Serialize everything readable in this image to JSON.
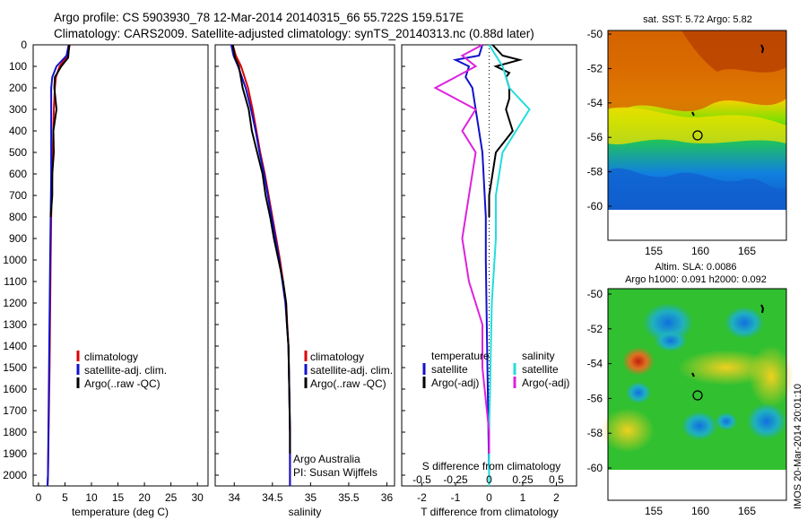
{
  "header": {
    "line1": "Argo profile: CS 5903930_78 12-Mar-2014 20140315_66 55.722S 159.517E",
    "line2": "Climatology: CARS2009. Satellite-adjusted climatology: synTS_20140313.nc (0.88d later)"
  },
  "colors": {
    "climatology": "#dd0000",
    "satellite": "#1111cc",
    "argo": "#000000",
    "satellite_salinity": "#22dddd",
    "argo_adj_salinity": "#dd22dd"
  },
  "legend": {
    "climatology": "climatology",
    "satellite_adj": "satellite-adj. clim.",
    "argo_raw": "Argo(..raw -QC)",
    "temperature_header": "temperature",
    "salinity_header": "salinity",
    "satellite": "satellite",
    "argo_adj": "Argo(-adj)"
  },
  "footnote": {
    "line1": "Argo Australia",
    "line2": "PI: Susan Wijffels"
  },
  "maps": {
    "sst_title": "sat. SST: 5.72 Argo: 5.82",
    "sla_title1": "Altim. SLA: 0.0086",
    "sla_title2": "Argo h1000: 0.091 h2000: 0.092",
    "side_stamp": "IMOS 20-Mar-2014 20:01:10",
    "lat_ticks": [
      "-50",
      "-52",
      "-54",
      "-56",
      "-58",
      "-60"
    ],
    "lon_ticks": [
      "155",
      "160",
      "165"
    ],
    "float_lon": 159.517,
    "float_lat": -55.722
  },
  "chart_data": [
    {
      "type": "line",
      "xlabel": "temperature (deg C)",
      "xlim": [
        -1,
        32
      ],
      "ylim": [
        2050,
        0
      ],
      "x_ticks": [
        "0",
        "5",
        "10",
        "15",
        "20",
        "25",
        "30"
      ],
      "y_ticks": [
        "0",
        "100",
        "200",
        "300",
        "400",
        "500",
        "600",
        "700",
        "800",
        "900",
        "1000",
        "1100",
        "1200",
        "1300",
        "1400",
        "1500",
        "1600",
        "1700",
        "1800",
        "1900",
        "2000"
      ],
      "series": [
        {
          "name": "climatology",
          "depth": [
            0,
            50,
            100,
            150,
            200,
            300,
            400,
            600,
            800,
            1000,
            1500,
            2000,
            2050
          ],
          "values": [
            5.9,
            5.5,
            4.0,
            3.3,
            3.1,
            2.9,
            2.8,
            2.6,
            2.4,
            2.3,
            2.1,
            1.8,
            1.7
          ]
        },
        {
          "name": "satellite-adj. clim.",
          "depth": [
            0,
            50,
            100,
            150,
            200,
            300,
            400,
            600,
            800,
            1000,
            1500,
            2000,
            2050
          ],
          "values": [
            5.7,
            5.3,
            3.4,
            2.6,
            2.4,
            2.4,
            2.4,
            2.4,
            2.3,
            2.2,
            2.0,
            1.8,
            1.7
          ]
        },
        {
          "name": "Argo(..raw -QC)",
          "depth": [
            0,
            60,
            100,
            150,
            200,
            300,
            400,
            500,
            600,
            700,
            800
          ],
          "values": [
            5.8,
            5.6,
            4.3,
            3.1,
            3.0,
            3.4,
            2.8,
            2.9,
            2.6,
            2.6,
            2.3
          ]
        }
      ]
    },
    {
      "type": "line",
      "xlabel": "salinity",
      "xlim": [
        33.75,
        36.1
      ],
      "ylim": [
        2050,
        0
      ],
      "x_ticks": [
        "34",
        "34.5",
        "35",
        "35.5",
        "36"
      ],
      "series": [
        {
          "name": "climatology",
          "depth": [
            0,
            50,
            100,
            200,
            300,
            400,
            500,
            600,
            700,
            800,
            900,
            1000,
            1100,
            1200,
            1400,
            1600,
            1800,
            2000,
            2050
          ],
          "values": [
            33.98,
            34.02,
            34.09,
            34.18,
            34.24,
            34.29,
            34.34,
            34.4,
            34.45,
            34.5,
            34.55,
            34.6,
            34.64,
            34.68,
            34.71,
            34.72,
            34.73,
            34.73,
            34.73
          ]
        },
        {
          "name": "satellite-adj. clim.",
          "depth": [
            0,
            50,
            100,
            200,
            300,
            400,
            500,
            600,
            700,
            800,
            900,
            1000,
            1100,
            1200,
            1400,
            1600,
            1800,
            2000,
            2050
          ],
          "values": [
            33.96,
            33.99,
            34.05,
            34.15,
            34.22,
            34.28,
            34.33,
            34.39,
            34.44,
            34.49,
            34.54,
            34.59,
            34.63,
            34.67,
            34.71,
            34.72,
            34.73,
            34.73,
            34.73
          ]
        },
        {
          "name": "Argo(..raw -QC)",
          "depth": [
            0,
            60,
            100,
            200,
            300,
            400,
            500,
            600,
            700,
            800,
            900,
            1000,
            1100,
            1200,
            1300,
            1400,
            1600,
            1800,
            1900
          ],
          "values": [
            33.98,
            34.01,
            34.06,
            34.11,
            34.19,
            34.23,
            34.3,
            34.37,
            34.41,
            34.47,
            34.52,
            34.58,
            34.64,
            34.68,
            34.69,
            34.71,
            34.72,
            34.73,
            34.73
          ]
        }
      ]
    },
    {
      "type": "line",
      "xlabel": "T difference from climatology",
      "xlabel_top": "S difference from climatology",
      "xlim": [
        -2.6,
        2.6
      ],
      "ylim": [
        2050,
        0
      ],
      "x_ticks": [
        "-2",
        "-1",
        "0",
        "1",
        "2"
      ],
      "top_ticks": [
        "-0.5",
        "-0.25",
        "0",
        "0.25",
        "0.5"
      ],
      "series": [
        {
          "name": "temperature satellite",
          "depth": [
            0,
            50,
            70,
            100,
            150,
            200,
            300,
            500,
            800,
            1000,
            1500,
            2000,
            2050
          ],
          "values": [
            -0.2,
            -0.3,
            -1.0,
            -0.6,
            -0.7,
            -0.5,
            -0.4,
            -0.2,
            -0.1,
            -0.1,
            -0.05,
            0,
            0
          ]
        },
        {
          "name": "temperature Argo(-adj)",
          "depth": [
            0,
            50,
            70,
            100,
            130,
            150,
            200,
            250,
            300,
            350,
            400,
            500,
            600,
            700,
            800
          ],
          "values": [
            0.1,
            0.4,
            0.9,
            0.2,
            0.6,
            0.5,
            0.6,
            0.6,
            0.5,
            0.6,
            0.7,
            0.2,
            0.1,
            0.0,
            0.0
          ]
        },
        {
          "name": "salinity satellite",
          "depth": [
            0,
            50,
            100,
            200,
            300,
            400,
            500,
            700,
            900,
            1200,
            1500,
            1800,
            2050
          ],
          "values": [
            0.0,
            0.05,
            0.1,
            0.15,
            0.3,
            0.2,
            0.1,
            0.05,
            0.05,
            0.02,
            0.01,
            0.0,
            0.0
          ]
        },
        {
          "name": "salinity Argo(-adj)",
          "depth": [
            0,
            50,
            100,
            200,
            300,
            400,
            500,
            700,
            900,
            1100,
            1300,
            1500,
            1800,
            1900
          ],
          "values": [
            -0.05,
            -0.2,
            -0.1,
            -0.4,
            -0.1,
            -0.2,
            -0.1,
            -0.15,
            -0.2,
            -0.15,
            -0.05,
            -0.05,
            0.0,
            0.0
          ]
        }
      ]
    }
  ]
}
